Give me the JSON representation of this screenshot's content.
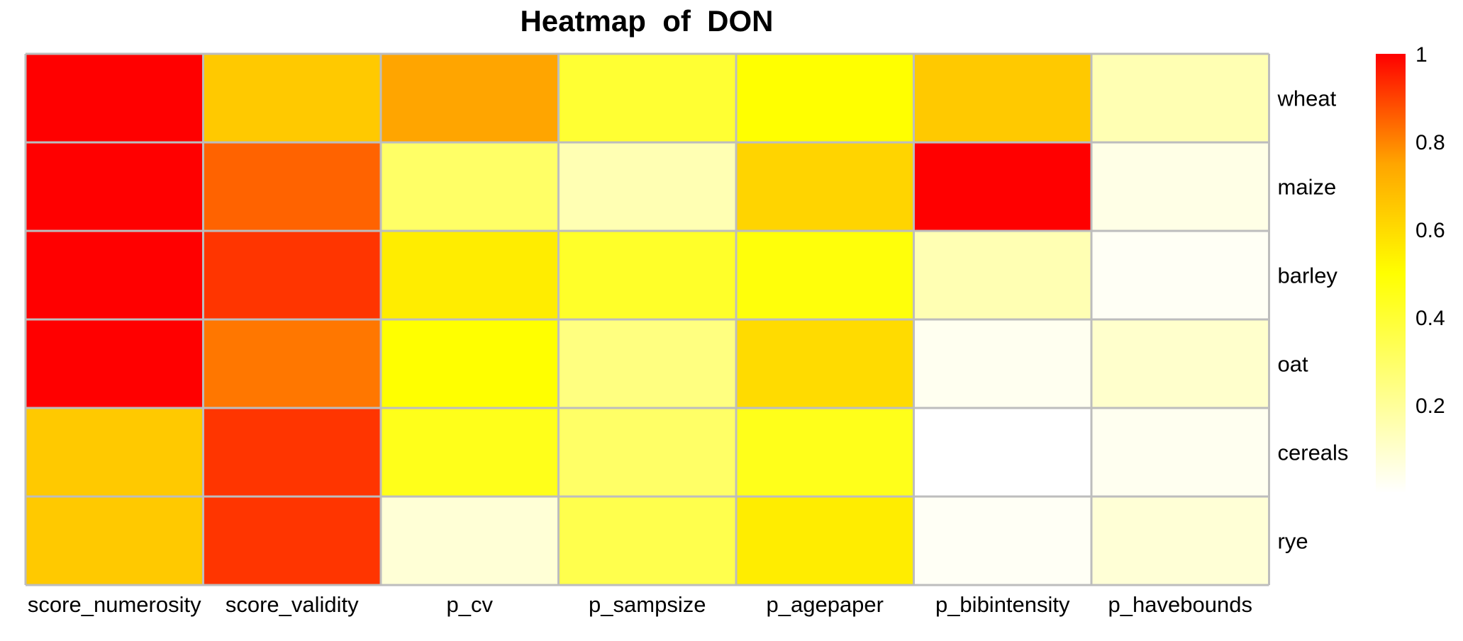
{
  "chart_data": {
    "type": "heatmap",
    "title": "Heatmap  of  DON",
    "columns": [
      "score_numerosity",
      "score_validity",
      "p_cv",
      "p_sampsize",
      "p_agepaper",
      "p_bibintensity",
      "p_havebounds"
    ],
    "rows": [
      "wheat",
      "maize",
      "barley",
      "oat",
      "cereals",
      "rye"
    ],
    "values": [
      [
        1.0,
        0.65,
        0.75,
        0.4,
        0.5,
        0.65,
        0.15
      ],
      [
        1.0,
        0.85,
        0.3,
        0.15,
        0.62,
        1.0,
        0.05
      ],
      [
        1.0,
        0.92,
        0.55,
        0.42,
        0.48,
        0.15,
        0.02
      ],
      [
        1.0,
        0.82,
        0.5,
        0.25,
        0.6,
        0.03,
        0.1
      ],
      [
        0.65,
        0.92,
        0.45,
        0.3,
        0.45,
        0.0,
        0.03
      ],
      [
        0.65,
        0.92,
        0.08,
        0.35,
        0.55,
        0.02,
        0.08
      ]
    ],
    "colorscale": {
      "range": [
        0,
        1
      ],
      "stops": [
        {
          "value": 0.0,
          "color": "#ffffff"
        },
        {
          "value": 0.5,
          "color": "#ffff00"
        },
        {
          "value": 0.75,
          "color": "#ffa500"
        },
        {
          "value": 1.0,
          "color": "#ff0000"
        }
      ],
      "ticks": [
        0.2,
        0.4,
        0.6,
        0.8,
        1
      ],
      "tick_labels": [
        "0.2",
        "0.4",
        "0.6",
        "0.8",
        "1"
      ]
    },
    "grid_color": "#bdbdbd",
    "legend_position": "right"
  }
}
